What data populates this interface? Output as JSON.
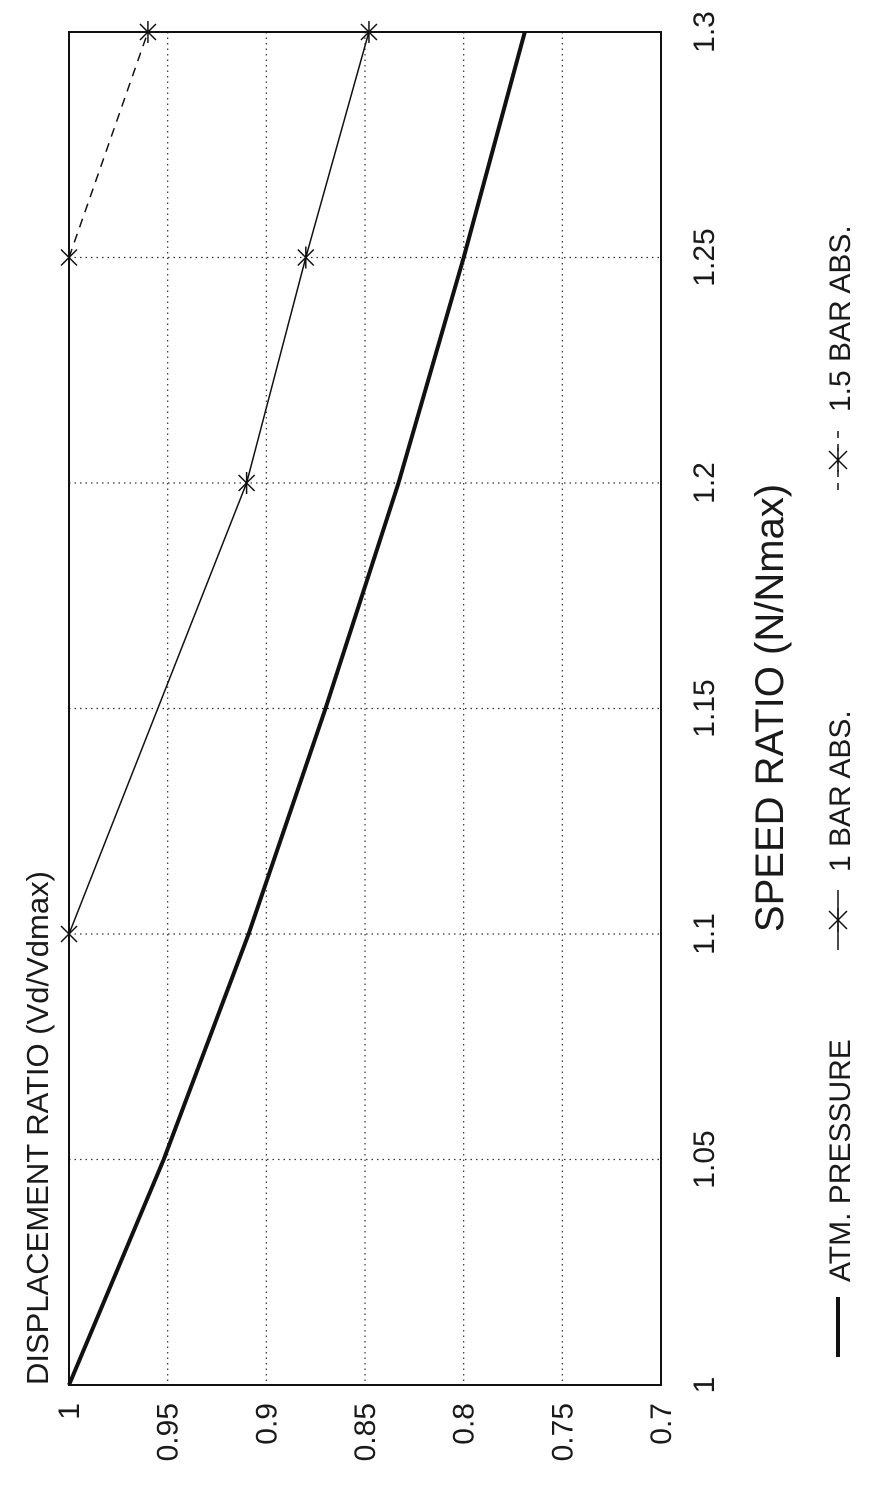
{
  "chart_data": {
    "type": "line",
    "title": "",
    "xlabel": "SPEED RATIO (N/Nmax)",
    "ylabel": "DISPLACEMENT RATIO (Vd/Vdmax)",
    "xlim": [
      1,
      1.3
    ],
    "ylim": [
      0.7,
      1
    ],
    "x_ticks": [
      1,
      1.05,
      1.1,
      1.15,
      1.2,
      1.25,
      1.3
    ],
    "y_ticks": [
      0.7,
      0.75,
      0.8,
      0.85,
      0.9,
      0.95,
      1
    ],
    "x_tick_labels": [
      "1",
      "1.05",
      "1.1",
      "1.15",
      "1.2",
      "1.25",
      "1.3"
    ],
    "y_tick_labels": [
      "0.7",
      "0.75",
      "0.8",
      "0.85",
      "0.9",
      "0.95",
      "1"
    ],
    "grid": true,
    "orientation": "rotated 90 degrees counter-clockwise",
    "legend_position": "bottom",
    "series": [
      {
        "name": "ATM. PRESSURE",
        "style": "thick-solid",
        "marker": "none",
        "x": [
          1,
          1.05,
          1.1,
          1.15,
          1.2,
          1.25,
          1.3
        ],
        "y": [
          1,
          0.952,
          0.909,
          0.87,
          0.833,
          0.8,
          0.769
        ]
      },
      {
        "name": "1 BAR ABS.",
        "style": "thin-solid",
        "marker": "star",
        "x": [
          1.1,
          1.2,
          1.25,
          1.3
        ],
        "y": [
          1,
          0.91,
          0.88,
          0.848
        ]
      },
      {
        "name": "1.5 BAR ABS.",
        "style": "dashed",
        "marker": "star",
        "x": [
          1.25,
          1.3
        ],
        "y": [
          1,
          0.96
        ]
      }
    ]
  }
}
